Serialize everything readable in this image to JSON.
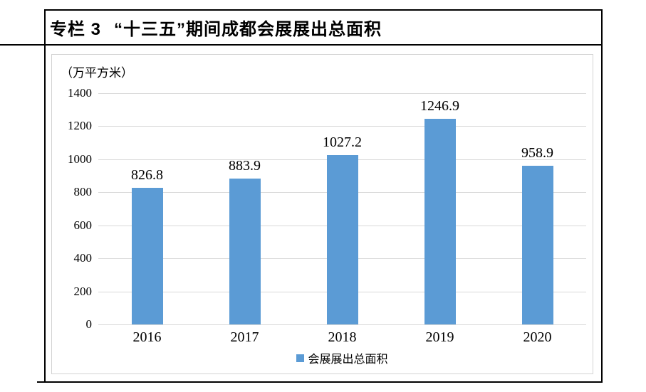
{
  "panel": {
    "title_prefix": "专栏 3",
    "title_main": "“十三五”期间成都会展展出总面积"
  },
  "chart_data": {
    "type": "bar",
    "title": "“十三五”期间成都会展展出总面积",
    "unit_label": "（万平方米）",
    "categories": [
      "2016",
      "2017",
      "2018",
      "2019",
      "2020"
    ],
    "series": [
      {
        "name": "会展展出总面积",
        "values": [
          826.8,
          883.9,
          1027.2,
          1246.9,
          958.9
        ]
      }
    ],
    "data_labels": [
      "826.8",
      "883.9",
      "1027.2",
      "1246.9",
      "958.9"
    ],
    "xlabel": "",
    "ylabel": "万平方米",
    "ylim": [
      0,
      1400
    ],
    "yticks": [
      0,
      200,
      400,
      600,
      800,
      1000,
      1200,
      1400
    ],
    "grid": true,
    "legend": {
      "position": "bottom",
      "items": [
        "会展展出总面积"
      ]
    },
    "colors": {
      "bar": "#5b9bd5",
      "gridline": "#d9d9d9",
      "chart_border": "#d3d3d3",
      "panel_border": "#000000",
      "text": "#000000"
    }
  }
}
